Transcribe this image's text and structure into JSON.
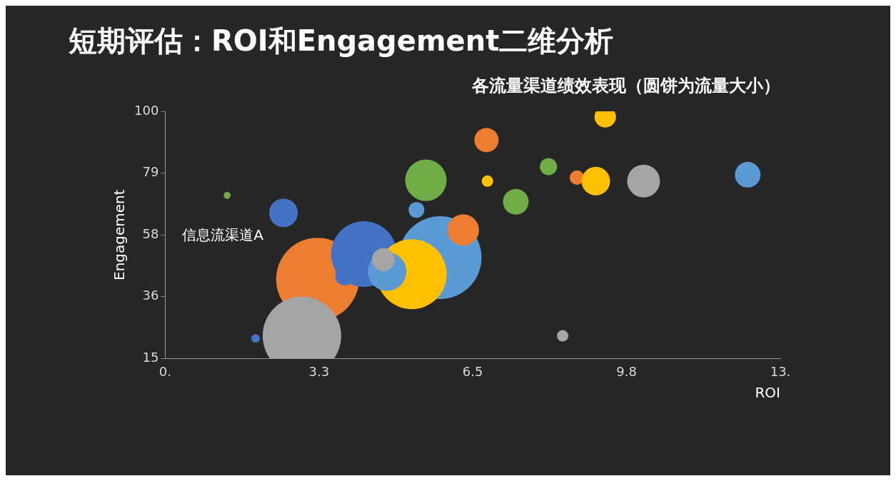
{
  "chart_data": {
    "type": "bubble",
    "title": "短期评估：ROI和Engagement二维分析",
    "subtitle": "各流量渠道绩效表现（圆饼为流量大小）",
    "xlabel": "ROI",
    "ylabel": "Engagement",
    "xlim": [
      0,
      13
    ],
    "xticks": [
      {
        "value": 0,
        "label": "0."
      },
      {
        "value": 3.25,
        "label": "3.3"
      },
      6.5,
      {
        "value": 9.75,
        "label": "9.8"
      },
      {
        "value": 13,
        "label": "13."
      }
    ],
    "ylim": [
      15,
      100
    ],
    "yticks": [
      15,
      {
        "value": 36.25,
        "label": "36"
      },
      {
        "value": 57.5,
        "label": "58"
      },
      {
        "value": 78.75,
        "label": "79"
      },
      100
    ],
    "x": [
      1.31,
      2.5,
      1.91,
      3.22,
      2.89,
      3.79,
      5.81,
      4.2,
      5.21,
      4.69,
      4.61,
      5.31,
      5.51,
      6.3,
      6.79,
      6.81,
      7.41,
      8.4,
      8.1,
      8.7,
      9.1,
      9.3,
      10.11,
      12.31
    ],
    "values": [
      71.1,
      65.1,
      21.9,
      42.3,
      22.8,
      43.3,
      49.7,
      50.9,
      44.0,
      44.9,
      49.0,
      66.1,
      76.3,
      59.2,
      90.1,
      76.0,
      68.9,
      22.8,
      81.0,
      77.2,
      76.0,
      98.1,
      76.0,
      78.2
    ],
    "sizes": [
      0.007,
      0.119,
      0.011,
      1,
      0.899,
      0.05,
      1,
      0.629,
      0.714,
      0.217,
      0.076,
      0.036,
      0.25,
      0.144,
      0.086,
      0.019,
      0.096,
      0.019,
      0.043,
      0.03,
      0.119,
      0.067,
      0.157,
      0.096
    ],
    "colors": [
      "#70ad47",
      "#4472c4",
      "#4472c4",
      "#ed7d31",
      "#a5a5a5",
      "#4472c4",
      "#5b9bd5",
      "#4472c4",
      "#ffc000",
      "#5b9bd5",
      "#a5a5a5",
      "#5b9bd5",
      "#70ad47",
      "#ed7d31",
      "#ed7d31",
      "#ffc000",
      "#70ad47",
      "#a5a5a5",
      "#70ad47",
      "#ed7d31",
      "#ffc000",
      "#ffc000",
      "#a5a5a5",
      "#5b9bd5"
    ],
    "annotations": [
      {
        "text": "信息流渠道A",
        "x": 2.5,
        "y": 65.1
      }
    ],
    "grid": false,
    "legend": false
  }
}
